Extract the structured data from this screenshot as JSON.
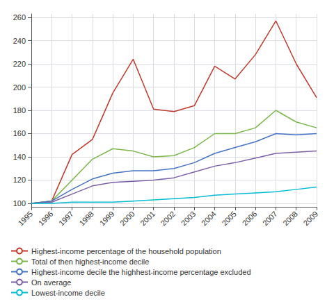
{
  "chart_data": {
    "type": "line",
    "x": [
      1995,
      1996,
      1997,
      1998,
      1999,
      2000,
      2001,
      2002,
      2003,
      2004,
      2005,
      2006,
      2007,
      2008,
      2009
    ],
    "series": [
      {
        "name": "Highest-income percentage of the household population",
        "color": "#c0392b",
        "values": [
          100,
          102,
          142,
          155,
          195,
          224,
          181,
          179,
          184,
          218,
          207,
          228,
          257,
          220,
          191
        ]
      },
      {
        "name": "Total of then highest-income decile",
        "color": "#7ab648",
        "values": [
          100,
          102,
          120,
          138,
          147,
          145,
          140,
          141,
          148,
          160,
          160,
          165,
          180,
          170,
          165
        ]
      },
      {
        "name": "Highest-income decile the highhest-income percentage excluded",
        "color": "#4472c4",
        "values": [
          100,
          102,
          112,
          121,
          126,
          128,
          128,
          130,
          135,
          143,
          148,
          153,
          160,
          159,
          160
        ]
      },
      {
        "name": "On average",
        "color": "#7b5ea7",
        "values": [
          100,
          101,
          108,
          115,
          118,
          119,
          120,
          122,
          127,
          132,
          135,
          139,
          143,
          144,
          145
        ]
      },
      {
        "name": "Lowest-income decile",
        "color": "#00bcd4",
        "values": [
          100,
          100,
          101,
          101,
          101,
          102,
          103,
          104,
          105,
          107,
          108,
          109,
          110,
          112,
          114
        ]
      }
    ],
    "xlim": [
      1995,
      2009
    ],
    "xticks": [
      1995,
      1996,
      1997,
      1998,
      1999,
      2000,
      2001,
      2002,
      2003,
      2004,
      2005,
      2006,
      2007,
      2008,
      2009
    ],
    "ylim": [
      97,
      263
    ],
    "yticks": [
      100,
      120,
      140,
      160,
      180,
      200,
      220,
      240,
      260
    ],
    "grid": true,
    "legend": "lower left"
  }
}
